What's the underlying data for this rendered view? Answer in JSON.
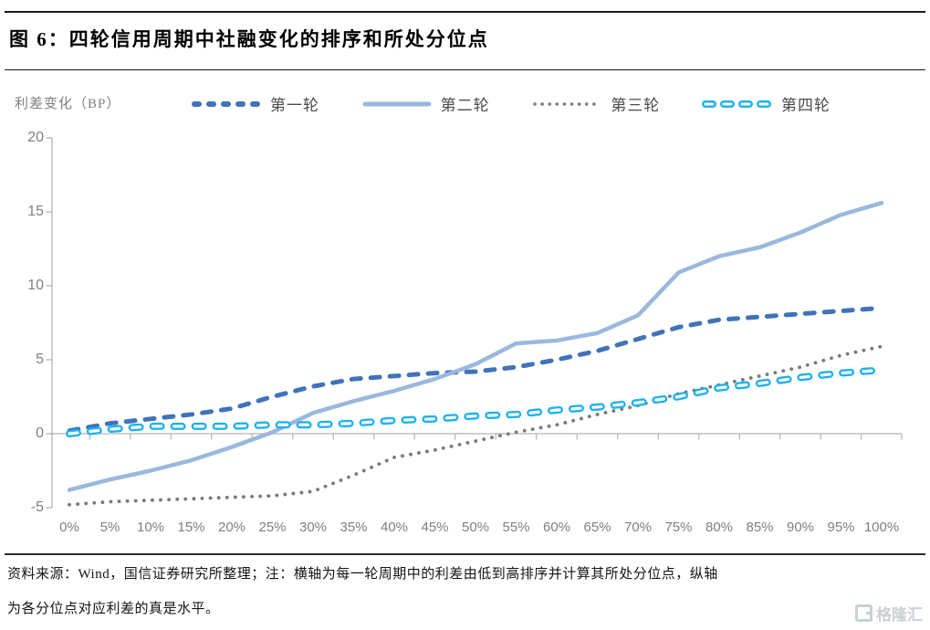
{
  "figure": {
    "title": "图 6：四轮信用周期中社融变化的排序和所处分位点"
  },
  "chart_data": {
    "type": "line",
    "title": "四轮信用周期中社融变化的排序和所处分位点",
    "ylabel": "利差变化（BP）",
    "xlabel": "",
    "x_tick_labels": [
      "0%",
      "5%",
      "10%",
      "15%",
      "20%",
      "25%",
      "30%",
      "35%",
      "40%",
      "45%",
      "50%",
      "55%",
      "60%",
      "65%",
      "70%",
      "75%",
      "80%",
      "85%",
      "90%",
      "95%",
      "100%"
    ],
    "y_ticks": [
      20,
      15,
      10,
      5,
      0,
      -5
    ],
    "ylim": [
      -5,
      20
    ],
    "grid": false,
    "legend_position": "top",
    "series": [
      {
        "name": "第一轮",
        "line_style": "dashed",
        "color": "#4073b8",
        "values": [
          0.2,
          0.7,
          1.0,
          1.3,
          1.7,
          2.5,
          3.2,
          3.7,
          3.9,
          4.1,
          4.2,
          4.5,
          5.0,
          5.6,
          6.4,
          7.2,
          7.7,
          7.9,
          8.1,
          8.3,
          8.5
        ]
      },
      {
        "name": "第二轮",
        "line_style": "solid",
        "color": "#9ab8dd",
        "values": [
          -3.8,
          -3.1,
          -2.5,
          -1.8,
          -0.9,
          0.1,
          1.4,
          2.2,
          2.9,
          3.7,
          4.7,
          6.1,
          6.3,
          6.8,
          8.0,
          10.9,
          12.0,
          12.6,
          13.6,
          14.8,
          15.6
        ]
      },
      {
        "name": "第三轮",
        "line_style": "dotted",
        "color": "#7a7a7a",
        "values": [
          -4.8,
          -4.6,
          -4.5,
          -4.4,
          -4.3,
          -4.2,
          -3.9,
          -2.8,
          -1.6,
          -1.1,
          -0.5,
          0.1,
          0.6,
          1.3,
          1.9,
          2.7,
          3.3,
          3.9,
          4.5,
          5.3,
          5.9
        ]
      },
      {
        "name": "第四轮",
        "line_style": "hollow-dash",
        "color": "#1fb2ec",
        "values": [
          0.0,
          0.3,
          0.5,
          0.5,
          0.5,
          0.6,
          0.6,
          0.7,
          0.9,
          1.0,
          1.2,
          1.3,
          1.6,
          1.8,
          2.1,
          2.5,
          3.1,
          3.4,
          3.8,
          4.1,
          4.3
        ]
      }
    ]
  },
  "footer": {
    "source_note_line1": "资料来源：Wind，国信证券研究所整理；注：横轴为每一轮周期中的利差由低到高排序并计算其所处分位点，纵轴",
    "source_note_line2": "为各分位点对应利差的真是水平。",
    "logo_text": "格隆汇"
  }
}
